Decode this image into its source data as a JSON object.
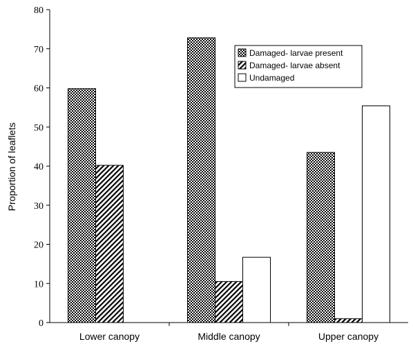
{
  "chart_data": {
    "type": "bar",
    "title": "",
    "xlabel": "",
    "ylabel": "Proportion of leaflets",
    "categories": [
      "Lower canopy",
      "Middle canopy",
      "Upper canopy"
    ],
    "ylim": [
      0,
      80
    ],
    "yticks": [
      0,
      10,
      20,
      30,
      40,
      50,
      60,
      70,
      80
    ],
    "grid": false,
    "legend_position": "top-right",
    "series": [
      {
        "name": "Damaged- larvae present",
        "values": [
          59.8,
          72.8,
          43.5
        ],
        "pattern": "checkered"
      },
      {
        "name": "Damaged- larvae absent",
        "values": [
          40.2,
          10.5,
          1.0
        ],
        "pattern": "diagonal-hatch"
      },
      {
        "name": "Undamaged",
        "values": [
          0,
          16.7,
          55.4
        ],
        "pattern": "solid-white"
      }
    ]
  }
}
